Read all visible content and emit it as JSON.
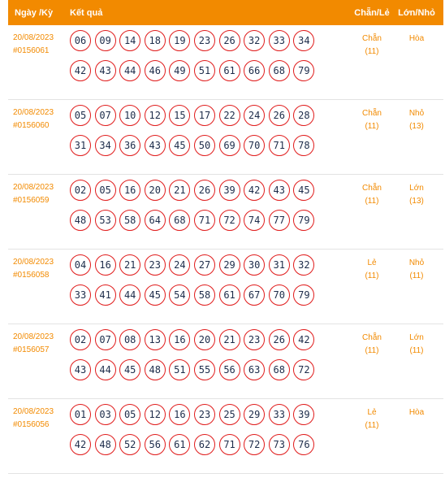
{
  "header": {
    "date_label": "Ngày /Kỳ",
    "result_label": "Kết quả",
    "chanle_label": "Chẵn/Lẻ",
    "lonnho_label": "Lớn/Nhỏ"
  },
  "draws": [
    {
      "date": "20/08/2023",
      "id": "#0156061",
      "numbers": [
        "06",
        "09",
        "14",
        "18",
        "19",
        "23",
        "26",
        "32",
        "33",
        "34",
        "42",
        "43",
        "44",
        "46",
        "49",
        "51",
        "61",
        "66",
        "68",
        "79"
      ],
      "chanle": "Chẵn",
      "chanle_count": "(11)",
      "lonnho": "Hòa",
      "lonnho_count": ""
    },
    {
      "date": "20/08/2023",
      "id": "#0156060",
      "numbers": [
        "05",
        "07",
        "10",
        "12",
        "15",
        "17",
        "22",
        "24",
        "26",
        "28",
        "31",
        "34",
        "36",
        "43",
        "45",
        "50",
        "69",
        "70",
        "71",
        "78"
      ],
      "chanle": "Chẵn",
      "chanle_count": "(11)",
      "lonnho": "Nhỏ",
      "lonnho_count": "(13)"
    },
    {
      "date": "20/08/2023",
      "id": "#0156059",
      "numbers": [
        "02",
        "05",
        "16",
        "20",
        "21",
        "26",
        "39",
        "42",
        "43",
        "45",
        "48",
        "53",
        "58",
        "64",
        "68",
        "71",
        "72",
        "74",
        "77",
        "79"
      ],
      "chanle": "Chẵn",
      "chanle_count": "(11)",
      "lonnho": "Lớn",
      "lonnho_count": "(13)"
    },
    {
      "date": "20/08/2023",
      "id": "#0156058",
      "numbers": [
        "04",
        "16",
        "21",
        "23",
        "24",
        "27",
        "29",
        "30",
        "31",
        "32",
        "33",
        "41",
        "44",
        "45",
        "54",
        "58",
        "61",
        "67",
        "70",
        "79"
      ],
      "chanle": "Lẻ",
      "chanle_count": "(11)",
      "lonnho": "Nhỏ",
      "lonnho_count": "(11)"
    },
    {
      "date": "20/08/2023",
      "id": "#0156057",
      "numbers": [
        "02",
        "07",
        "08",
        "13",
        "16",
        "20",
        "21",
        "23",
        "26",
        "42",
        "43",
        "44",
        "45",
        "48",
        "51",
        "55",
        "56",
        "63",
        "68",
        "72"
      ],
      "chanle": "Chẵn",
      "chanle_count": "(11)",
      "lonnho": "Lớn",
      "lonnho_count": "(11)"
    },
    {
      "date": "20/08/2023",
      "id": "#0156056",
      "numbers": [
        "01",
        "03",
        "05",
        "12",
        "16",
        "23",
        "25",
        "29",
        "33",
        "39",
        "42",
        "48",
        "52",
        "56",
        "61",
        "62",
        "71",
        "72",
        "73",
        "76"
      ],
      "chanle": "Lẻ",
      "chanle_count": "(11)",
      "lonnho": "Hòa",
      "lonnho_count": ""
    }
  ]
}
